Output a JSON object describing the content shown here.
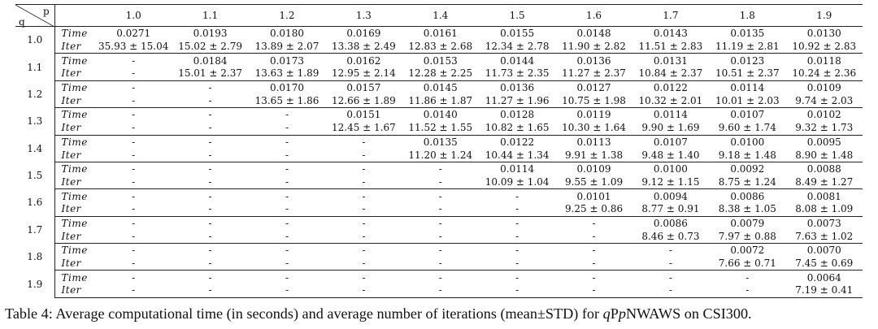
{
  "header": {
    "p_label": "p",
    "q_label": "q",
    "p_values": [
      "1.0",
      "1.1",
      "1.2",
      "1.3",
      "1.4",
      "1.5",
      "1.6",
      "1.7",
      "1.8",
      "1.9"
    ]
  },
  "row_labels": {
    "time": "Time",
    "iter": "Iter"
  },
  "rows": [
    {
      "q": "1.0",
      "time": [
        "0.0271",
        "0.0193",
        "0.0180",
        "0.0169",
        "0.0161",
        "0.0155",
        "0.0148",
        "0.0143",
        "0.0135",
        "0.0130"
      ],
      "iter": [
        "35.93 ± 15.04",
        "15.02 ± 2.79",
        "13.89 ± 2.07",
        "13.38 ± 2.49",
        "12.83 ± 2.68",
        "12.34 ± 2.78",
        "11.90 ± 2.82",
        "11.51 ± 2.83",
        "11.19 ± 2.81",
        "10.92 ± 2.83"
      ]
    },
    {
      "q": "1.1",
      "time": [
        "-",
        "0.0184",
        "0.0173",
        "0.0162",
        "0.0153",
        "0.0144",
        "0.0136",
        "0.0131",
        "0.0123",
        "0.0118"
      ],
      "iter": [
        "-",
        "15.01 ± 2.37",
        "13.63 ± 1.89",
        "12.95 ± 2.14",
        "12.28 ± 2.25",
        "11.73 ± 2.35",
        "11.27 ± 2.37",
        "10.84 ± 2.37",
        "10.51 ± 2.37",
        "10.24 ± 2.36"
      ]
    },
    {
      "q": "1.2",
      "time": [
        "-",
        "-",
        "0.0170",
        "0.0157",
        "0.0145",
        "0.0136",
        "0.0127",
        "0.0122",
        "0.0114",
        "0.0109"
      ],
      "iter": [
        "-",
        "-",
        "13.65 ± 1.86",
        "12.66 ± 1.89",
        "11.86 ± 1.87",
        "11.27 ± 1.96",
        "10.75 ± 1.98",
        "10.32 ± 2.01",
        "10.01 ± 2.03",
        "9.74 ± 2.03"
      ]
    },
    {
      "q": "1.3",
      "time": [
        "-",
        "-",
        "-",
        "0.0151",
        "0.0140",
        "0.0128",
        "0.0119",
        "0.0114",
        "0.0107",
        "0.0102"
      ],
      "iter": [
        "-",
        "-",
        "-",
        "12.45 ± 1.67",
        "11.52 ± 1.55",
        "10.82 ± 1.65",
        "10.30 ± 1.64",
        "9.90 ± 1.69",
        "9.60 ± 1.74",
        "9.32 ± 1.73"
      ]
    },
    {
      "q": "1.4",
      "time": [
        "-",
        "-",
        "-",
        "-",
        "0.0135",
        "0.0122",
        "0.0113",
        "0.0107",
        "0.0100",
        "0.0095"
      ],
      "iter": [
        "-",
        "-",
        "-",
        "-",
        "11.20 ± 1.24",
        "10.44 ± 1.34",
        "9.91 ± 1.38",
        "9.48 ± 1.40",
        "9.18 ± 1.48",
        "8.90 ± 1.48"
      ]
    },
    {
      "q": "1.5",
      "time": [
        "-",
        "-",
        "-",
        "-",
        "-",
        "0.0114",
        "0.0109",
        "0.0100",
        "0.0092",
        "0.0088"
      ],
      "iter": [
        "-",
        "-",
        "-",
        "-",
        "-",
        "10.09 ± 1.04",
        "9.55 ± 1.09",
        "9.12 ± 1.15",
        "8.75 ± 1.24",
        "8.49 ± 1.27"
      ]
    },
    {
      "q": "1.6",
      "time": [
        "-",
        "-",
        "-",
        "-",
        "-",
        "-",
        "0.0101",
        "0.0094",
        "0.0086",
        "0.0081"
      ],
      "iter": [
        "-",
        "-",
        "-",
        "-",
        "-",
        "-",
        "9.25 ± 0.86",
        "8.77 ± 0.91",
        "8.38 ± 1.05",
        "8.08 ± 1.09"
      ]
    },
    {
      "q": "1.7",
      "time": [
        "-",
        "-",
        "-",
        "-",
        "-",
        "-",
        "-",
        "0.0086",
        "0.0079",
        "0.0073"
      ],
      "iter": [
        "-",
        "-",
        "-",
        "-",
        "-",
        "-",
        "-",
        "8.46 ± 0.73",
        "7.97 ± 0.88",
        "7.63 ± 1.02"
      ]
    },
    {
      "q": "1.8",
      "time": [
        "-",
        "-",
        "-",
        "-",
        "-",
        "-",
        "-",
        "-",
        "0.0072",
        "0.0070"
      ],
      "iter": [
        "-",
        "-",
        "-",
        "-",
        "-",
        "-",
        "-",
        "-",
        "7.66 ± 0.71",
        "7.45 ± 0.69"
      ]
    },
    {
      "q": "1.9",
      "time": [
        "-",
        "-",
        "-",
        "-",
        "-",
        "-",
        "-",
        "-",
        "-",
        "0.0064"
      ],
      "iter": [
        "-",
        "-",
        "-",
        "-",
        "-",
        "-",
        "-",
        "-",
        "-",
        "7.19 ± 0.41"
      ]
    }
  ],
  "caption": {
    "prefix": "Table 4: Average computational time (in seconds) and average number of iterations (mean±STD) for ",
    "q": "q",
    "mid": "P",
    "p": "p",
    "suffix": "NWAWS on CSI300."
  }
}
